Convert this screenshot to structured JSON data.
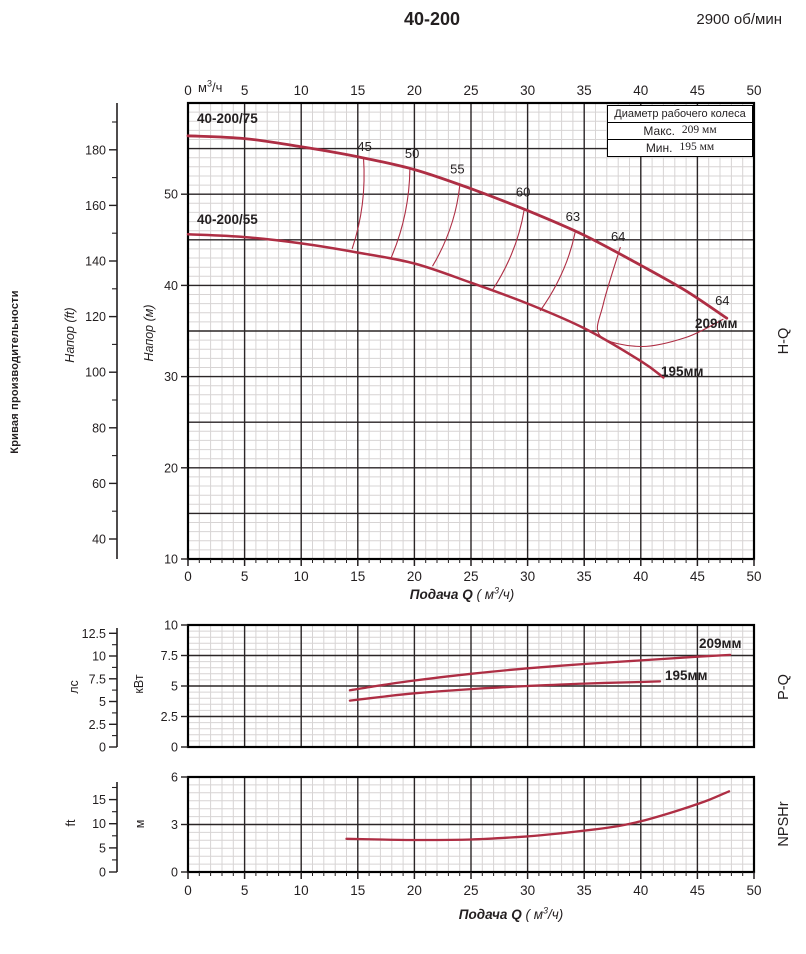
{
  "header": {
    "title": "40-200",
    "speed": "2900 об/мин"
  },
  "left_caption": "Кривая производительности",
  "top_axis_unit": {
    "pre": "м",
    "sup": "3",
    "post": "/ч"
  },
  "x_axis_label": {
    "name": "Подача Q",
    "unit_pre": " ( м",
    "unit_sup": "3",
    "unit_post": "/ч)"
  },
  "legend": {
    "title": "Диаметр рабочего колеса",
    "rows": [
      {
        "label": "Макс.",
        "value": "209 мм"
      },
      {
        "label": "Мин.",
        "value": "195 мм"
      }
    ]
  },
  "side_labels": {
    "hq": "H-Q",
    "pq": "P-Q",
    "npsh": "NPSHr"
  },
  "axis_titles": {
    "head_ft": "Напор (ft)",
    "head_m": "Напор (м)",
    "power_hp": "лс",
    "power_kw": "кВт",
    "npsh_ft": "ft",
    "npsh_m": "м"
  },
  "curve_labels": {
    "upper": "40-200/75",
    "lower": "40-200/55",
    "hq_209": "209мм",
    "hq_195": "195мм",
    "pq_209": "209мм",
    "pq_195": "195мм"
  },
  "colors": {
    "curve": "#ae2e44",
    "grid_major": "#2b2627",
    "grid_minor": "#d7d4d4",
    "border": "#000000",
    "text": "#231f20"
  },
  "chart_data": [
    {
      "id": "hq",
      "type": "line",
      "title": "H-Q",
      "x": {
        "label": "Подача Q ( м3/ч)",
        "unit": "м3/ч",
        "min": 0,
        "max": 50,
        "ticks": [
          0,
          5,
          10,
          15,
          20,
          25,
          30,
          35,
          40,
          45,
          50
        ]
      },
      "y_m": {
        "label": "Напор (м)",
        "min": 10,
        "max": 60,
        "ticks": [
          10,
          20,
          30,
          40,
          50
        ]
      },
      "y_ft": {
        "label": "Напор (ft)",
        "ticks": [
          40,
          60,
          80,
          100,
          120,
          140,
          160,
          180
        ]
      },
      "series": [
        {
          "name": "40-200/75",
          "impeller": "209мм",
          "points": [
            [
              0,
              56.4
            ],
            [
              5,
              56.1
            ],
            [
              10,
              55.2
            ],
            [
              15,
              54.1
            ],
            [
              20,
              52.7
            ],
            [
              25,
              50.6
            ],
            [
              30,
              48.2
            ],
            [
              35,
              45.5
            ],
            [
              40,
              42.2
            ],
            [
              44,
              39.4
            ],
            [
              47.6,
              36.4
            ]
          ]
        },
        {
          "name": "40-200/55",
          "impeller": "195мм",
          "points": [
            [
              0,
              45.6
            ],
            [
              5,
              45.3
            ],
            [
              10,
              44.6
            ],
            [
              15,
              43.6
            ],
            [
              20,
              42.4
            ],
            [
              25,
              40.3
            ],
            [
              30,
              38.0
            ],
            [
              35,
              35.3
            ],
            [
              40,
              31.7
            ],
            [
              42,
              29.9
            ]
          ]
        }
      ],
      "efficiency": {
        "contours": [
          {
            "value": 45,
            "from": [
              15.5,
              54.0
            ],
            "to": [
              14.5,
              44.0
            ]
          },
          {
            "value": 50,
            "from": [
              19.6,
              52.8
            ],
            "to": [
              17.9,
              42.9
            ]
          },
          {
            "value": 55,
            "from": [
              24.0,
              50.9
            ],
            "to": [
              21.6,
              42.1
            ]
          },
          {
            "value": 60,
            "from": [
              29.7,
              48.3
            ],
            "to": [
              26.9,
              39.5
            ]
          },
          {
            "value": 63,
            "from": [
              34.2,
              45.8
            ],
            "to": [
              31.1,
              37.2
            ]
          }
        ],
        "closed_contour_64": [
          [
            38.2,
            44.2
          ],
          [
            36.7,
            38.0
          ],
          [
            36.4,
            34.5
          ],
          [
            40,
            33.3
          ],
          [
            44,
            34.3
          ],
          [
            47.3,
            36.3
          ]
        ],
        "labels": [
          {
            "value": 45,
            "at": [
              15.6,
              55.2
            ]
          },
          {
            "value": 50,
            "at": [
              19.8,
              54.4
            ]
          },
          {
            "value": 55,
            "at": [
              23.8,
              52.7
            ]
          },
          {
            "value": 60,
            "at": [
              29.6,
              50.2
            ]
          },
          {
            "value": 63,
            "at": [
              34.0,
              47.5
            ]
          },
          {
            "value": 64,
            "at": [
              38.0,
              45.3
            ]
          },
          {
            "value": 64,
            "at": [
              47.2,
              38.3
            ]
          }
        ]
      }
    },
    {
      "id": "pq",
      "type": "line",
      "title": "P-Q",
      "x": {
        "min": 0,
        "max": 50,
        "ticks": [
          0,
          5,
          10,
          15,
          20,
          25,
          30,
          35,
          40,
          45,
          50
        ]
      },
      "y_kw": {
        "label": "кВт",
        "min": 0,
        "max": 10,
        "ticks": [
          0,
          2.5,
          5,
          7.5,
          10
        ]
      },
      "y_hp": {
        "label": "лс",
        "ticks": [
          0,
          2.5,
          5,
          7.5,
          10,
          12.5
        ]
      },
      "series": [
        {
          "impeller": "209мм",
          "points": [
            [
              14.3,
              4.65
            ],
            [
              17,
              5.05
            ],
            [
              20,
              5.45
            ],
            [
              25,
              6.0
            ],
            [
              30,
              6.45
            ],
            [
              35,
              6.8
            ],
            [
              40,
              7.1
            ],
            [
              45,
              7.4
            ],
            [
              47.9,
              7.55
            ]
          ]
        },
        {
          "impeller": "195мм",
          "points": [
            [
              14.3,
              3.8
            ],
            [
              17,
              4.1
            ],
            [
              20,
              4.4
            ],
            [
              25,
              4.75
            ],
            [
              30,
              5.0
            ],
            [
              35,
              5.2
            ],
            [
              40,
              5.33
            ],
            [
              41.7,
              5.38
            ]
          ]
        }
      ]
    },
    {
      "id": "npsh",
      "type": "line",
      "title": "NPSHr",
      "x": {
        "label": "Подача Q ( м3/ч)",
        "min": 0,
        "max": 50,
        "ticks": [
          0,
          5,
          10,
          15,
          20,
          25,
          30,
          35,
          40,
          45,
          50
        ]
      },
      "y_m": {
        "label": "м",
        "min": 0,
        "max": 6,
        "ticks": [
          0,
          3,
          6
        ]
      },
      "y_ft": {
        "label": "ft",
        "ticks": [
          0,
          5,
          10,
          15
        ]
      },
      "series": [
        {
          "points": [
            [
              14,
              2.1
            ],
            [
              17,
              2.05
            ],
            [
              20,
              2.02
            ],
            [
              25,
              2.05
            ],
            [
              30,
              2.25
            ],
            [
              33,
              2.45
            ],
            [
              36,
              2.7
            ],
            [
              38,
              2.9
            ],
            [
              40,
              3.2
            ],
            [
              42,
              3.6
            ],
            [
              44,
              4.05
            ],
            [
              46,
              4.55
            ],
            [
              47.8,
              5.1
            ]
          ]
        }
      ]
    }
  ]
}
